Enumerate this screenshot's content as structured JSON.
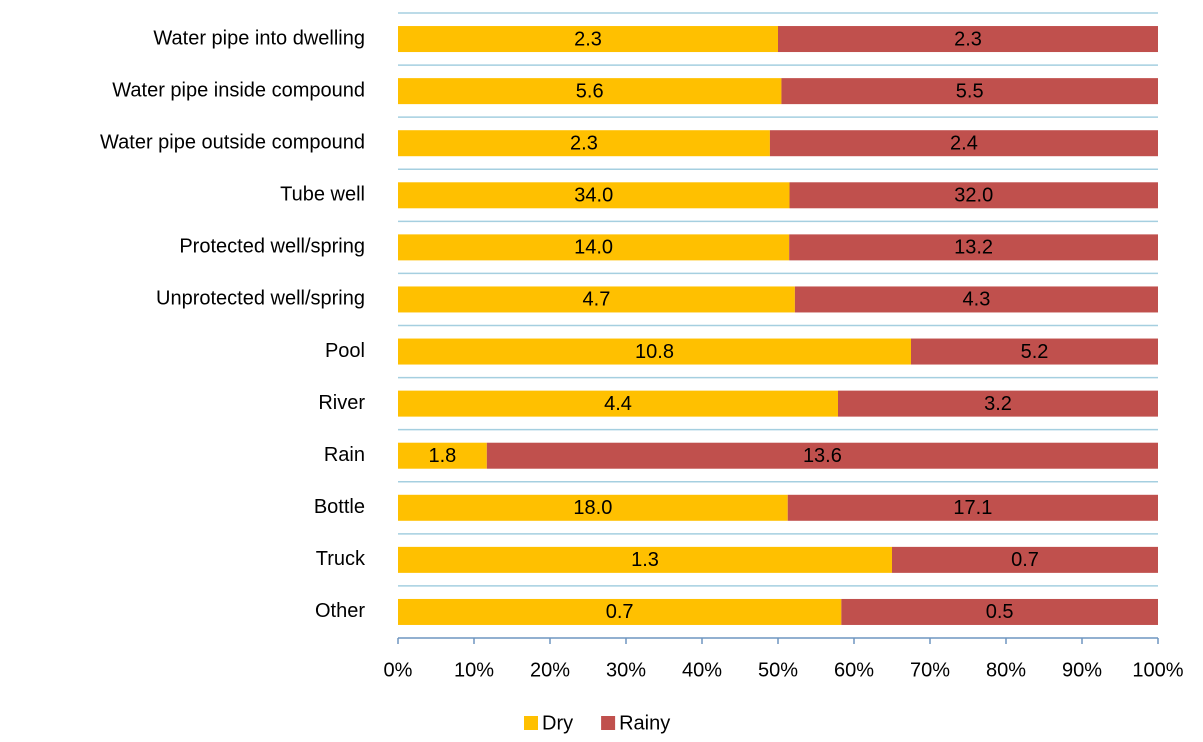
{
  "chart_data": {
    "type": "bar",
    "orientation": "horizontal",
    "stacking": "percent",
    "categories": [
      "Water pipe into dwelling",
      "Water pipe inside  compound",
      "Water pipe outside compound",
      "Tube well",
      "Protected well/spring",
      "Unprotected well/spring",
      "Pool",
      "River",
      "Rain",
      "Bottle",
      "Truck",
      "Other"
    ],
    "series": [
      {
        "name": "Dry",
        "color": "#ffc000",
        "values": [
          2.3,
          5.6,
          2.3,
          34.0,
          14.0,
          4.7,
          10.8,
          4.4,
          1.8,
          18.0,
          1.3,
          0.7
        ],
        "value_labels": [
          "2.3",
          "5.6",
          "2.3",
          "34.0",
          "14.0",
          "4.7",
          "10.8",
          "4.4",
          "1.8",
          "18.0",
          "1.3",
          "0.7"
        ]
      },
      {
        "name": "Rainy",
        "color": "#c0504d",
        "values": [
          2.3,
          5.5,
          2.4,
          32.0,
          13.2,
          4.3,
          5.2,
          3.2,
          13.6,
          17.1,
          0.7,
          0.5
        ],
        "value_labels": [
          "2.3",
          "5.5",
          "2.4",
          "32.0",
          "13.2",
          "4.3",
          "5.2",
          "3.2",
          "13.6",
          "17.1",
          "0.7",
          "0.5"
        ]
      }
    ],
    "xlim": [
      0,
      100
    ],
    "xticks": [
      {
        "value": 0,
        "label": "0%"
      },
      {
        "value": 10,
        "label": "10%"
      },
      {
        "value": 20,
        "label": "20%"
      },
      {
        "value": 30,
        "label": "30%"
      },
      {
        "value": 40,
        "label": "40%"
      },
      {
        "value": 50,
        "label": "50%"
      },
      {
        "value": 60,
        "label": "60%"
      },
      {
        "value": 70,
        "label": "70%"
      },
      {
        "value": 80,
        "label": "80%"
      },
      {
        "value": 90,
        "label": "90%"
      },
      {
        "value": 100,
        "label": "100%"
      }
    ],
    "legend": "bottom"
  }
}
